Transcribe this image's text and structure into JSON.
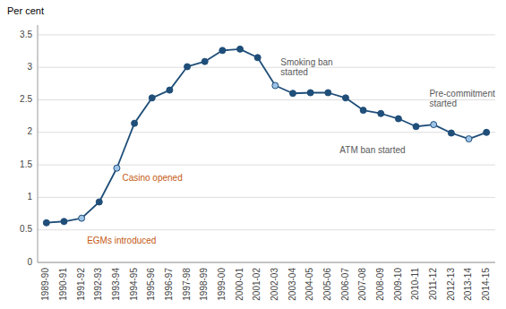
{
  "chart_data": {
    "type": "line",
    "ylabel": "Per cent",
    "categories": [
      "1989-90",
      "1990-91",
      "1991-92",
      "1992-93",
      "1993-94",
      "1994-95",
      "1995-96",
      "1996-97",
      "1997-98",
      "1998-99",
      "1999-00",
      "2000-01",
      "2001-02",
      "2002-03",
      "2003-04",
      "2004-05",
      "2005-06",
      "2006-07",
      "2007-08",
      "2008-09",
      "2009-10",
      "2010-11",
      "2011-12",
      "2012-13",
      "2013-14",
      "2014-15"
    ],
    "values": [
      0.61,
      0.63,
      0.68,
      0.93,
      1.45,
      2.14,
      2.53,
      2.65,
      3.01,
      3.09,
      3.26,
      3.28,
      3.15,
      2.72,
      2.6,
      2.61,
      2.61,
      2.53,
      2.34,
      2.29,
      2.21,
      2.09,
      2.12,
      1.99,
      1.9,
      2.0
    ],
    "color": "#1F4E79",
    "colors": [
      "#1F4E79",
      "#1F4E79",
      "#9DC3E6",
      "#1F4E79",
      "#9DC3E6",
      "#1F4E79",
      "#1F4E79",
      "#1F4E79",
      "#1F4E79",
      "#1F4E79",
      "#1F4E79",
      "#1F4E79",
      "#1F4E79",
      "#9DC3E6",
      "#1F4E79",
      "#1F4E79",
      "#1F4E79",
      "#1F4E79",
      "#1F4E79",
      "#1F4E79",
      "#1F4E79",
      "#1F4E79",
      "#9DC3E6",
      "#1F4E79",
      "#9DC3E6",
      "#1F4E79"
    ],
    "marker": "circle",
    "ylim": [
      0,
      3.65
    ],
    "yticks": [
      0,
      0.5,
      1,
      1.5,
      2,
      2.5,
      3,
      3.5
    ],
    "grid": true,
    "annotations": [
      {
        "text": "EGMs introduced",
        "category": "1991-92",
        "color": "#C55A11"
      },
      {
        "text": "Casino opened",
        "category": "1993-94",
        "color": "#C55A11"
      },
      {
        "text": "Smoking ban\nstarted",
        "category": "2002-03",
        "color": "#595959"
      },
      {
        "text": "ATM ban started",
        "category": "2010-11",
        "color": "#595959"
      },
      {
        "text": "Pre-commitment\nstarted",
        "category": "2011-12",
        "color": "#595959"
      }
    ]
  }
}
